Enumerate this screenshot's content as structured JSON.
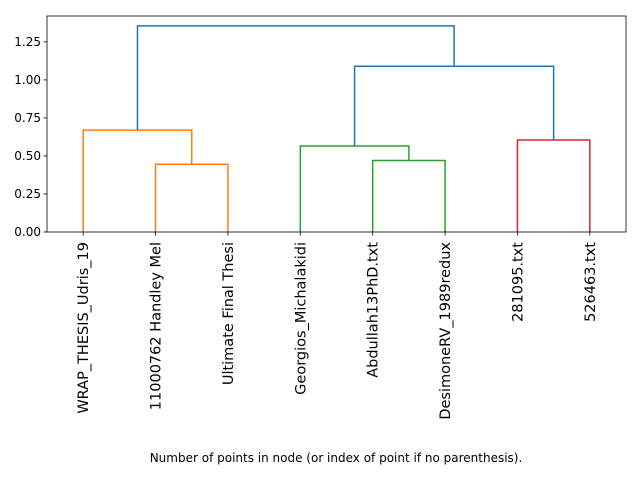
{
  "chart_data": {
    "type": "dendrogram",
    "title": "",
    "xlabel": "Number of points in node (or index of point if no parenthesis).",
    "ylabel": "",
    "ylim": [
      0,
      1.42
    ],
    "yticks": [
      {
        "value": 0.0,
        "label": "0.00"
      },
      {
        "value": 0.25,
        "label": "0.25"
      },
      {
        "value": 0.5,
        "label": "0.50"
      },
      {
        "value": 0.75,
        "label": "0.75"
      },
      {
        "value": 1.0,
        "label": "1.00"
      },
      {
        "value": 1.25,
        "label": "1.25"
      }
    ],
    "leaves": [
      "WRAP_THESIS_Udris_19",
      "11000762 Handley Mel",
      "Ultimate Final Thesi",
      "Georgios_Michalakidi",
      "Abdullah13PhD.txt",
      "DesimoneRV_1989redux",
      "281095.txt",
      "526463.txt"
    ],
    "merges": [
      {
        "left": 1,
        "right": 2,
        "height": 0.445,
        "cluster": "orange"
      },
      {
        "left": 0,
        "right": "m0",
        "height": 0.67,
        "cluster": "orange"
      },
      {
        "left": 4,
        "right": 5,
        "height": 0.47,
        "cluster": "green"
      },
      {
        "left": 3,
        "right": "m2",
        "height": 0.565,
        "cluster": "green"
      },
      {
        "left": 6,
        "right": 7,
        "height": 0.605,
        "cluster": "red"
      },
      {
        "left": "m3",
        "right": "m4",
        "height": 1.09,
        "cluster": "above"
      },
      {
        "left": "m1",
        "right": "m5",
        "height": 1.355,
        "cluster": "above"
      }
    ],
    "colors": {
      "orange": "#ff7f0e",
      "green": "#2ca02c",
      "red": "#d62728",
      "above": "#1f77b4"
    },
    "grid": false
  }
}
